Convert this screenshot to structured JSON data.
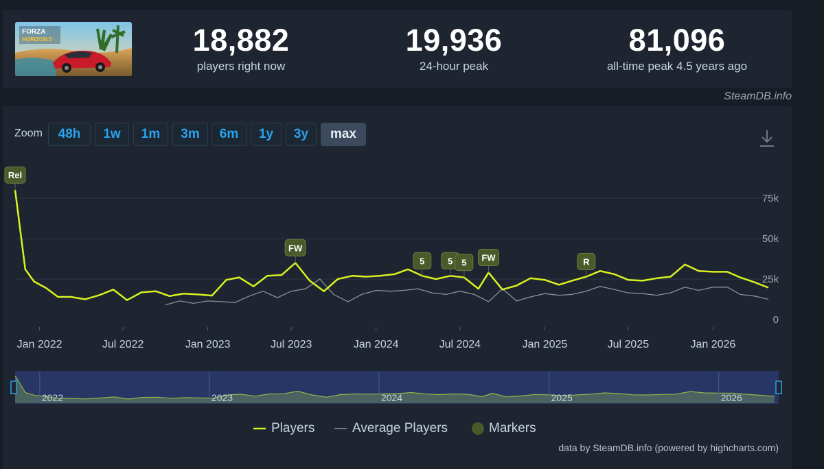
{
  "stats": [
    {
      "value": "18,882",
      "label": "players right now"
    },
    {
      "value": "19,936",
      "label": "24-hour peak"
    },
    {
      "value": "81,096",
      "label": "all-time peak 4.5 years ago"
    }
  ],
  "game_image_icon": "forza-horizon-5-cover",
  "site_credit": "SteamDB.info",
  "zoom": {
    "label": "Zoom",
    "buttons": [
      "48h",
      "1w",
      "1m",
      "3m",
      "6m",
      "1y",
      "3y",
      "max"
    ],
    "active": "max"
  },
  "download_icon": "download-icon",
  "colors": {
    "players": "#d9f220",
    "average": "#8a939b",
    "markers_fill": "#4a5a2a",
    "accent": "#2aa3ec"
  },
  "chart_data": {
    "type": "line",
    "x_ticks": [
      "Jan 2022",
      "Jul 2022",
      "Jan 2023",
      "Jul 2023",
      "Jan 2024",
      "Jul 2024",
      "Jan 2025",
      "Jul 2025",
      "Jan 2026"
    ],
    "y_ticks": [
      "0",
      "25k",
      "50k",
      "75k"
    ],
    "ylim": [
      0,
      100000
    ],
    "xlim": [
      "2021-11-09",
      "2026-05-10"
    ],
    "grid": true,
    "legend_position": "bottom",
    "series": [
      {
        "name": "Players",
        "points": [
          [
            "2021-11-09",
            80000
          ],
          [
            "2021-12-01",
            31000
          ],
          [
            "2021-12-20",
            23500
          ],
          [
            "2022-01-15",
            19500
          ],
          [
            "2022-02-10",
            14000
          ],
          [
            "2022-03-10",
            14000
          ],
          [
            "2022-04-10",
            12500
          ],
          [
            "2022-05-10",
            15000
          ],
          [
            "2022-06-10",
            18500
          ],
          [
            "2022-07-10",
            12000
          ],
          [
            "2022-08-10",
            16800
          ],
          [
            "2022-09-10",
            17500
          ],
          [
            "2022-10-10",
            14500
          ],
          [
            "2022-11-10",
            16000
          ],
          [
            "2022-12-10",
            15500
          ],
          [
            "2023-01-10",
            14800
          ],
          [
            "2023-02-10",
            24500
          ],
          [
            "2023-03-10",
            26000
          ],
          [
            "2023-04-10",
            20500
          ],
          [
            "2023-05-10",
            27000
          ],
          [
            "2023-06-10",
            27500
          ],
          [
            "2023-07-10",
            35000
          ],
          [
            "2023-08-10",
            24000
          ],
          [
            "2023-09-10",
            17500
          ],
          [
            "2023-10-10",
            25000
          ],
          [
            "2023-11-10",
            27000
          ],
          [
            "2023-12-10",
            26500
          ],
          [
            "2024-01-10",
            27000
          ],
          [
            "2024-02-10",
            28000
          ],
          [
            "2024-03-10",
            31000
          ],
          [
            "2024-04-10",
            27000
          ],
          [
            "2024-05-10",
            25000
          ],
          [
            "2024-06-10",
            27000
          ],
          [
            "2024-07-10",
            26000
          ],
          [
            "2024-08-10",
            19000
          ],
          [
            "2024-09-01",
            29000
          ],
          [
            "2024-10-01",
            18500
          ],
          [
            "2024-11-01",
            21000
          ],
          [
            "2024-12-01",
            25500
          ],
          [
            "2025-01-01",
            24500
          ],
          [
            "2025-02-01",
            21500
          ],
          [
            "2025-03-01",
            24000
          ],
          [
            "2025-04-01",
            26500
          ],
          [
            "2025-05-01",
            30000
          ],
          [
            "2025-06-01",
            28000
          ],
          [
            "2025-07-01",
            24500
          ],
          [
            "2025-08-01",
            24000
          ],
          [
            "2025-09-01",
            25500
          ],
          [
            "2025-10-01",
            26500
          ],
          [
            "2025-11-01",
            34000
          ],
          [
            "2025-12-01",
            30000
          ],
          [
            "2026-01-01",
            29500
          ],
          [
            "2026-02-01",
            29500
          ],
          [
            "2026-03-01",
            26000
          ],
          [
            "2026-04-01",
            23000
          ],
          [
            "2026-05-01",
            19700
          ]
        ]
      },
      {
        "name": "Average Players",
        "points": [
          [
            "2022-10-01",
            9000
          ],
          [
            "2022-11-01",
            11500
          ],
          [
            "2022-12-01",
            10000
          ],
          [
            "2023-01-01",
            11500
          ],
          [
            "2023-02-01",
            11000
          ],
          [
            "2023-03-01",
            10500
          ],
          [
            "2023-04-01",
            14500
          ],
          [
            "2023-05-01",
            17500
          ],
          [
            "2023-06-01",
            13500
          ],
          [
            "2023-07-01",
            17500
          ],
          [
            "2023-08-01",
            19000
          ],
          [
            "2023-09-01",
            25000
          ],
          [
            "2023-10-01",
            15500
          ],
          [
            "2023-11-01",
            11000
          ],
          [
            "2023-12-01",
            15500
          ],
          [
            "2024-01-01",
            18000
          ],
          [
            "2024-02-01",
            17500
          ],
          [
            "2024-03-01",
            18000
          ],
          [
            "2024-04-01",
            19000
          ],
          [
            "2024-05-01",
            16500
          ],
          [
            "2024-06-01",
            15500
          ],
          [
            "2024-07-01",
            17500
          ],
          [
            "2024-08-01",
            15500
          ],
          [
            "2024-09-01",
            11000
          ],
          [
            "2024-10-01",
            19000
          ],
          [
            "2024-11-01",
            11500
          ],
          [
            "2024-12-01",
            14000
          ],
          [
            "2025-01-01",
            16000
          ],
          [
            "2025-02-01",
            15000
          ],
          [
            "2025-03-01",
            15500
          ],
          [
            "2025-04-01",
            17500
          ],
          [
            "2025-05-01",
            20500
          ],
          [
            "2025-06-01",
            18500
          ],
          [
            "2025-07-01",
            16500
          ],
          [
            "2025-08-01",
            16000
          ],
          [
            "2025-09-01",
            15000
          ],
          [
            "2025-10-01",
            16500
          ],
          [
            "2025-11-01",
            20000
          ],
          [
            "2025-12-01",
            18000
          ],
          [
            "2026-01-01",
            20000
          ],
          [
            "2026-02-01",
            20000
          ],
          [
            "2026-03-01",
            15500
          ],
          [
            "2026-04-01",
            14500
          ],
          [
            "2026-05-01",
            12500
          ]
        ]
      }
    ],
    "markers": [
      {
        "label": "Rel",
        "date": "2021-11-09",
        "value": 80000
      },
      {
        "label": "FW",
        "date": "2023-07-10",
        "value": 35000
      },
      {
        "label": "5",
        "date": "2024-04-10",
        "value": 27000
      },
      {
        "label": "5",
        "date": "2024-06-10",
        "value": 27000
      },
      {
        "label": "5",
        "date": "2024-07-10",
        "value": 26000
      },
      {
        "label": "FW",
        "date": "2024-09-01",
        "value": 29000
      },
      {
        "label": "R",
        "date": "2025-04-01",
        "value": 26500
      }
    ],
    "navigator_labels": [
      "2022",
      "2023",
      "2024",
      "2025",
      "2026"
    ]
  },
  "legend": {
    "players": "Players",
    "average": "Average Players",
    "markers": "Markers"
  },
  "credit": "data by SteamDB.info (powered by highcharts.com)"
}
